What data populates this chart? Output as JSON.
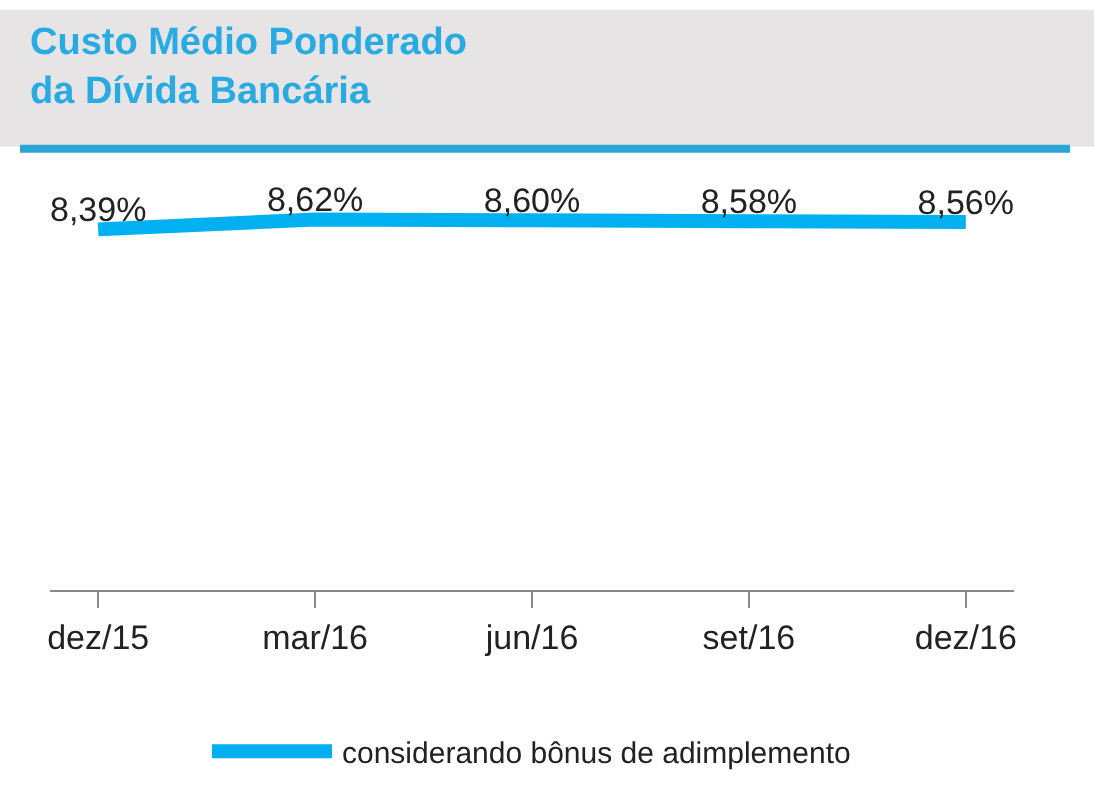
{
  "chart_data": {
    "type": "line",
    "title": "Custo Médio Ponderado\nda Dívida Bancária",
    "categories": [
      "dez/15",
      "mar/16",
      "jun/16",
      "set/16",
      "dez/16"
    ],
    "series": [
      {
        "name": "considerando bônus de adimplemento",
        "color": "#00b0f0",
        "values": [
          8.39,
          8.62,
          8.6,
          8.58,
          8.56
        ],
        "value_labels": [
          "8,39%",
          "8,62%",
          "8,60%",
          "8,58%",
          "8,56%"
        ]
      }
    ],
    "tick_labels": "x",
    "legend": "bottom",
    "marker": "none",
    "line_style": "solid"
  }
}
